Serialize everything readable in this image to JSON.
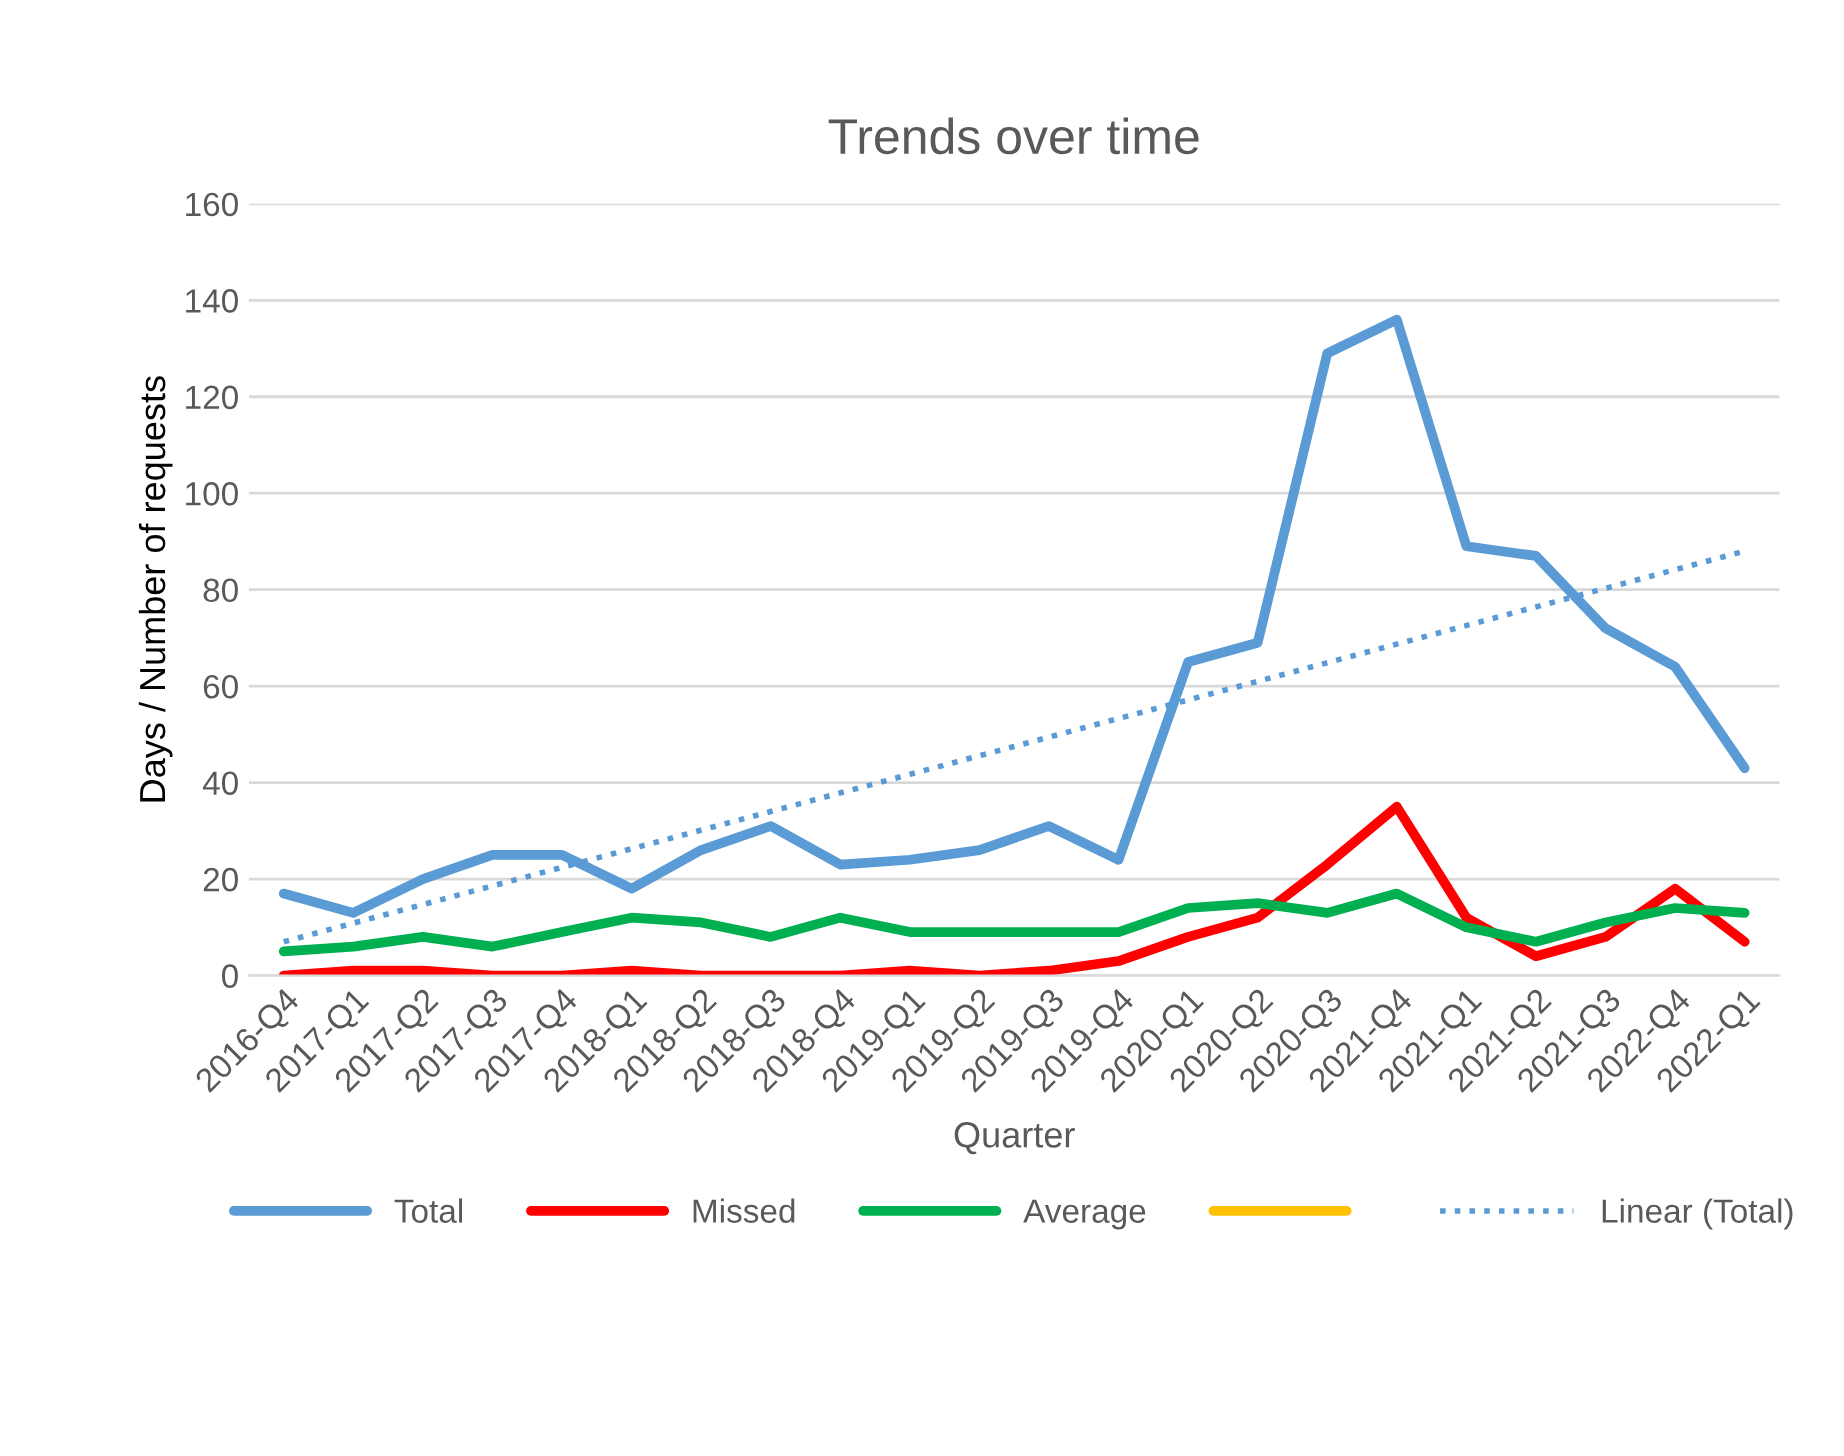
{
  "chart_data": {
    "type": "line",
    "title": "Trends over time",
    "xlabel": "Quarter",
    "ylabel": "Days / Number of requests",
    "categories": [
      "2016-Q4",
      "2017-Q1",
      "2017-Q2",
      "2017-Q3",
      "2017-Q4",
      "2018-Q1",
      "2018-Q2",
      "2018-Q3",
      "2018-Q4",
      "2019-Q1",
      "2019-Q2",
      "2019-Q3",
      "2019-Q4",
      "2020-Q1",
      "2020-Q2",
      "2020-Q3",
      "2021-Q4",
      "2021-Q1",
      "2021-Q2",
      "2021-Q3",
      "2022-Q4",
      "2022-Q1"
    ],
    "series": [
      {
        "name": "Total",
        "color": "#5b9bd5",
        "values": [
          17,
          13,
          20,
          25,
          25,
          18,
          26,
          31,
          23,
          24,
          26,
          31,
          24,
          65,
          69,
          129,
          136,
          89,
          87,
          72,
          64,
          43
        ]
      },
      {
        "name": "Missed",
        "color": "#ff0000",
        "values": [
          0,
          1,
          1,
          0,
          0,
          1,
          0,
          0,
          0,
          1,
          0,
          1,
          3,
          8,
          12,
          23,
          35,
          12,
          4,
          8,
          18,
          7
        ]
      },
      {
        "name": "Average",
        "color": "#00b050",
        "values": [
          5,
          6,
          8,
          6,
          9,
          12,
          11,
          8,
          12,
          9,
          9,
          9,
          9,
          14,
          15,
          13,
          17,
          10,
          7,
          11,
          14,
          13
        ]
      },
      {
        "color": "#ffc000",
        "values": [
          null,
          null,
          null,
          null,
          null,
          null,
          null,
          null,
          null,
          null,
          null,
          null,
          null,
          null,
          null,
          null,
          null,
          null,
          null,
          null,
          null,
          null
        ]
      },
      {
        "name": "Linear (Total)",
        "type": "line",
        "line_style": "dotted",
        "color": "#5b9bd5",
        "x": [
          "2016-Q4",
          "2022-Q1"
        ],
        "values": [
          7,
          88
        ]
      }
    ],
    "ylim": [
      0,
      160
    ],
    "yticks": [
      0,
      20,
      40,
      60,
      80,
      100,
      120,
      140,
      160
    ],
    "grid": "y",
    "legend": "bottom",
    "marker": "none",
    "line_style": "solid"
  }
}
